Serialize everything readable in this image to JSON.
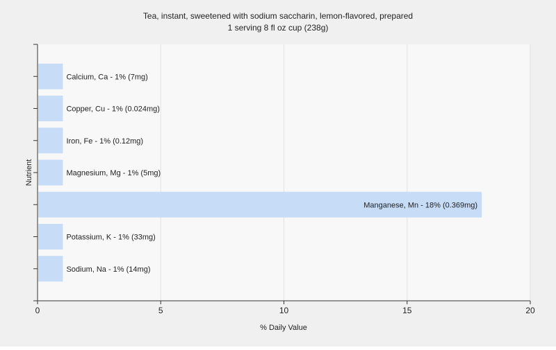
{
  "chart_data": {
    "type": "bar",
    "orientation": "horizontal",
    "title": "Tea, instant, sweetened with sodium saccharin, lemon-flavored, prepared",
    "subtitle": "1 serving 8 fl oz cup (238g)",
    "xlabel": "% Daily Value",
    "ylabel": "Nutrient",
    "xlim": [
      0,
      20
    ],
    "xticks": [
      0,
      5,
      10,
      15,
      20
    ],
    "grid": "vertical",
    "bar_color": "#c6dcf7",
    "categories": [
      "Calcium, Ca",
      "Copper, Cu",
      "Iron, Fe",
      "Magnesium, Mg",
      "Manganese, Mn",
      "Potassium, K",
      "Sodium, Na"
    ],
    "values": [
      1,
      1,
      1,
      1,
      18,
      1,
      1
    ],
    "labels": [
      "Calcium, Ca - 1% (7mg)",
      "Copper, Cu - 1% (0.024mg)",
      "Iron, Fe - 1% (0.12mg)",
      "Magnesium, Mg - 1% (5mg)",
      "Manganese, Mn - 18% (0.369mg)",
      "Potassium, K - 1% (33mg)",
      "Sodium, Na - 1% (14mg)"
    ]
  }
}
